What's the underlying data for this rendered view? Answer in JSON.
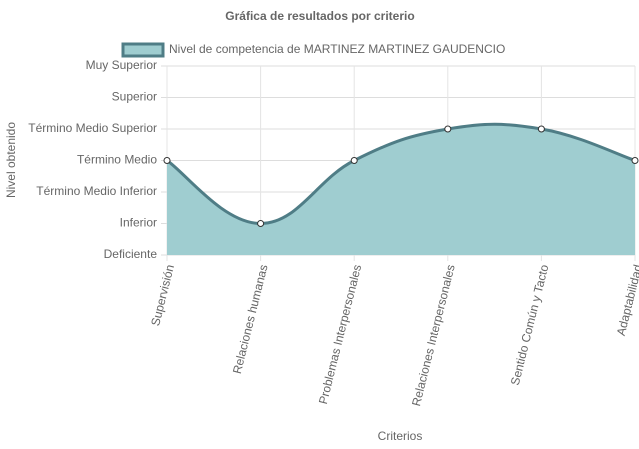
{
  "chart_data": {
    "type": "area",
    "title": "Gráfica de resultados por criterio",
    "x_label": "Criterios",
    "y_label": "Nivel obtenido",
    "categories": [
      "Supervisión",
      "Relaciones humanas",
      "Problemas Interpersonales",
      "Relaciones Interpersonales",
      "Sentido Común y Tacto",
      "Adaptabilidad"
    ],
    "series": [
      {
        "name": "Nivel de competencia de MARTINEZ MARTINEZ GAUDENCIO",
        "color": "#4f7d86",
        "fill": "#9fcdd0",
        "values": [
          3,
          1,
          3,
          4,
          4,
          3
        ]
      }
    ],
    "ylim": [
      0,
      6
    ],
    "yticks": [
      {
        "value": 0,
        "label": "Deficiente"
      },
      {
        "value": 1,
        "label": "Inferior"
      },
      {
        "value": 2,
        "label": "Término Medio Inferior"
      },
      {
        "value": 3,
        "label": "Término Medio"
      },
      {
        "value": 4,
        "label": "Término Medio Superior"
      },
      {
        "value": 5,
        "label": "Superior"
      },
      {
        "value": 6,
        "label": "Muy Superior"
      }
    ],
    "grid": true,
    "legend": "top"
  }
}
